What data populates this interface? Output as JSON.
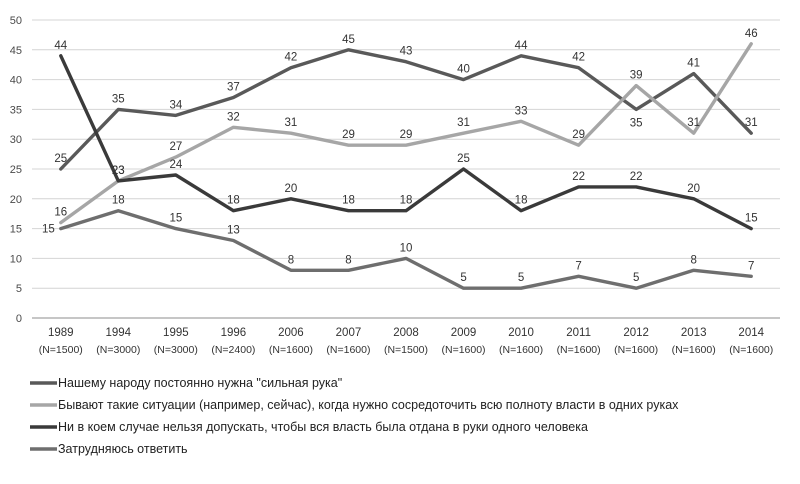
{
  "chart_data": {
    "type": "line",
    "title": "",
    "xlabel": "",
    "ylabel": "",
    "ylim": [
      0,
      50
    ],
    "yticks": [
      0,
      5,
      10,
      15,
      20,
      25,
      30,
      35,
      40,
      45,
      50
    ],
    "grid": true,
    "legend_position": "bottom",
    "categories": [
      {
        "year": "1989",
        "n": "(N=1500)"
      },
      {
        "year": "1994",
        "n": "(N=3000)"
      },
      {
        "year": "1995",
        "n": "(N=3000)"
      },
      {
        "year": "1996",
        "n": "(N=2400)"
      },
      {
        "year": "2006",
        "n": "(N=1600)"
      },
      {
        "year": "2007",
        "n": "(N=1600)"
      },
      {
        "year": "2008",
        "n": "(N=1500)"
      },
      {
        "year": "2009",
        "n": "(N=1600)"
      },
      {
        "year": "2010",
        "n": "(N=1600)"
      },
      {
        "year": "2011",
        "n": "(N=1600)"
      },
      {
        "year": "2012",
        "n": "(N=1600)"
      },
      {
        "year": "2013",
        "n": "(N=1600)"
      },
      {
        "year": "2014",
        "n": "(N=1600)"
      }
    ],
    "series": [
      {
        "name": "Нашему народу постоянно нужна \"сильная рука\"",
        "color": "#595959",
        "values": [
          25,
          35,
          34,
          37,
          42,
          45,
          43,
          40,
          44,
          42,
          35,
          41,
          31
        ],
        "label_offsets": [
          "above",
          "above",
          "above",
          "above",
          "above",
          "above",
          "above",
          "above",
          "above",
          "above",
          "below",
          "above",
          "above"
        ]
      },
      {
        "name": "Бывают такие ситуации (например, сейчас), когда нужно сосредоточить всю полноту власти в одних руках",
        "color": "#a6a6a6",
        "values": [
          16,
          23,
          27,
          32,
          31,
          29,
          29,
          31,
          33,
          29,
          39,
          31,
          46
        ],
        "label_offsets": [
          "above",
          "above",
          "above",
          "above",
          "above",
          "above",
          "above",
          "above",
          "above",
          "above",
          "above",
          "above",
          "above"
        ]
      },
      {
        "name": "Ни в коем случае нельзя допускать, чтобы вся власть была отдана в руки одного человека",
        "color": "#3a3a3a",
        "values": [
          44,
          23,
          24,
          18,
          20,
          18,
          18,
          25,
          18,
          22,
          22,
          20,
          15
        ],
        "label_offsets": [
          "above",
          "above",
          "above",
          "above",
          "above",
          "above",
          "above",
          "above",
          "above",
          "above",
          "above",
          "above",
          "above"
        ]
      },
      {
        "name": "Затрудняюсь ответить",
        "color": "#6e6e6e",
        "values": [
          15,
          18,
          15,
          13,
          8,
          8,
          10,
          5,
          5,
          7,
          5,
          8,
          7
        ],
        "label_offsets": [
          "left",
          "above",
          "above",
          "above",
          "above",
          "above",
          "above",
          "above",
          "above",
          "above",
          "above",
          "above",
          "above"
        ]
      }
    ]
  }
}
